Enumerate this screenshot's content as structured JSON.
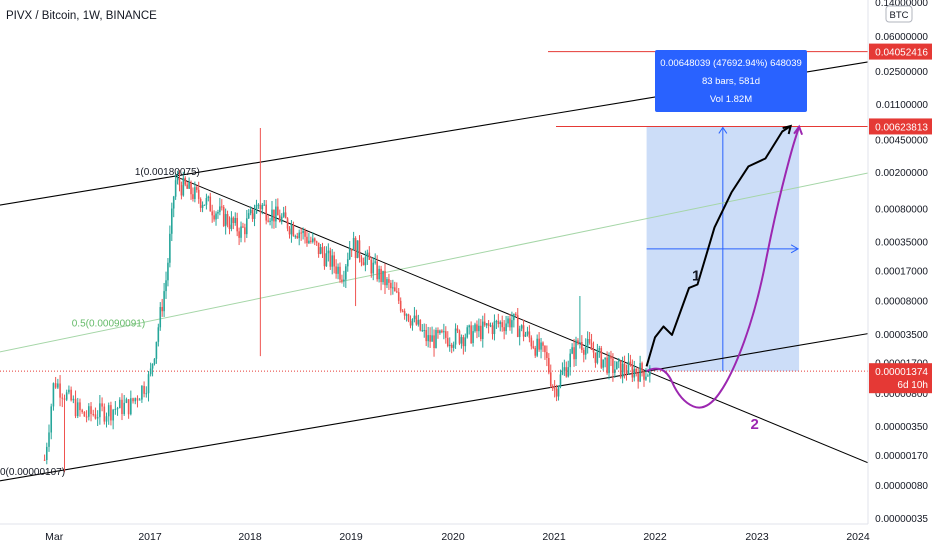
{
  "header": {
    "title": "PIVX / Bitcoin, 1W, BINANCE"
  },
  "colors": {
    "up": "#26a69a",
    "down": "#ef5350",
    "axis_text": "#131722",
    "red_line": "#e53935",
    "measure_fill": "#bbd2f6",
    "measure_line": "#2962ff",
    "fib_green": "#a5d6a7",
    "purple": "#9c27b0",
    "black": "#000000"
  },
  "chart_data": {
    "type": "candlestick",
    "title": "PIVX / Bitcoin, 1W, BINANCE",
    "y_scale": "log",
    "y_unit": "BTC",
    "x_tick_labels": [
      "Mar",
      "2017",
      "2018",
      "2019",
      "2020",
      "2021",
      "2022",
      "2023",
      "2024"
    ],
    "y_tick_labels": [
      "0.14000000",
      "0.06000000",
      "0.02500000",
      "0.01100000",
      "0.00450000",
      "0.00200000",
      "0.00080000",
      "0.00035000",
      "0.00017000",
      "0.00008000",
      "0.00003500",
      "0.00001700",
      "0.00000800",
      "0.00000350",
      "0.00000170",
      "0.00000080",
      "0.00000035"
    ],
    "y_range": [
      3.5e-07,
      0.14
    ],
    "price_labels": [
      {
        "value": "0.04052416",
        "color": "red"
      },
      {
        "value": "0.00623813",
        "color": "red"
      },
      {
        "value": "0.00001374",
        "sub": "6d 10h",
        "color": "red"
      }
    ],
    "currency_badge": "BTC",
    "fib_labels": [
      {
        "level": "1",
        "label": "1(0.00180075)"
      },
      {
        "level": "0.5",
        "label": "0.5(0.00090091)"
      },
      {
        "level": "0",
        "label": "0(0.00000107)"
      }
    ],
    "measure_box": {
      "line1": "0.00648039 (47692.94%) 648039",
      "line2": "83 bars, 581d",
      "line3": "Vol 1.82M"
    },
    "path_labels": [
      "1",
      "2"
    ],
    "price_series_anchors": [
      {
        "date": "2016-02",
        "value": 1.5e-06
      },
      {
        "date": "2016-03",
        "value": 1.1e-05
      },
      {
        "date": "2016-06",
        "value": 4.5e-06
      },
      {
        "date": "2016-11",
        "value": 6e-06
      },
      {
        "date": "2017-01",
        "value": 1.2e-05
      },
      {
        "date": "2017-03",
        "value": 0.00015
      },
      {
        "date": "2017-04",
        "value": 0.0016
      },
      {
        "date": "2017-08",
        "value": 0.0009
      },
      {
        "date": "2017-12",
        "value": 0.00045
      },
      {
        "date": "2018-02",
        "value": 0.0009
      },
      {
        "date": "2018-07",
        "value": 0.00045
      },
      {
        "date": "2018-12",
        "value": 0.00016
      },
      {
        "date": "2019-01",
        "value": 0.00035
      },
      {
        "date": "2019-05",
        "value": 0.00013
      },
      {
        "date": "2019-10",
        "value": 3e-05
      },
      {
        "date": "2020-03",
        "value": 3.5e-05
      },
      {
        "date": "2020-08",
        "value": 5e-05
      },
      {
        "date": "2020-12",
        "value": 2e-05
      },
      {
        "date": "2021-01",
        "value": 8.5e-06
      },
      {
        "date": "2021-04",
        "value": 3e-05
      },
      {
        "date": "2021-08",
        "value": 1.5e-05
      },
      {
        "date": "2021-12",
        "value": 1.374e-05
      }
    ]
  }
}
